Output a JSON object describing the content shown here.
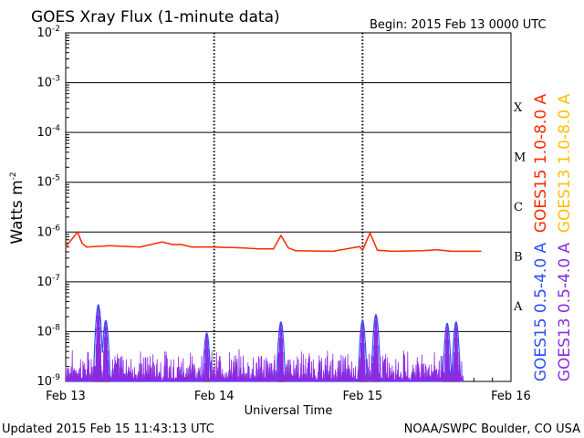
{
  "chart_data": {
    "type": "line",
    "title": "GOES Xray Flux (1-minute data)",
    "begin_label": "Begin:  2015 Feb 13 0000 UTC",
    "ylabel_main": "Watts m",
    "ylabel_exp": "-2",
    "xlabel": "Universal Time",
    "yscale": "log",
    "ylim": [
      1e-09,
      0.01
    ],
    "xlim_days": [
      0,
      3
    ],
    "x_ticks": [
      "Feb 13",
      "Feb 14",
      "Feb 15",
      "Feb 16"
    ],
    "y_ticks": [
      {
        "base": "10",
        "exp": "-2"
      },
      {
        "base": "10",
        "exp": "-3"
      },
      {
        "base": "10",
        "exp": "-4"
      },
      {
        "base": "10",
        "exp": "-5"
      },
      {
        "base": "10",
        "exp": "-6"
      },
      {
        "base": "10",
        "exp": "-7"
      },
      {
        "base": "10",
        "exp": "-8"
      },
      {
        "base": "10",
        "exp": "-9"
      }
    ],
    "flare_classes": [
      "X",
      "M",
      "C",
      "B",
      "A"
    ],
    "grid": true,
    "legend_placement": "right, vertical",
    "series": [
      {
        "name": "GOES15 1.0-8.0 A",
        "color": "#ff2a00",
        "band": "long"
      },
      {
        "name": "GOES13 1.0-8.0 A",
        "color": "#ffbf00",
        "band": "long"
      },
      {
        "name": "GOES15 0.5-4.0 A",
        "color": "#2b50ff",
        "band": "short"
      },
      {
        "name": "GOES13 0.5-4.0 A",
        "color": "#8a2be2",
        "band": "short"
      }
    ],
    "long_band_data": {
      "x_days": [
        0.0,
        0.08,
        0.11,
        0.14,
        0.3,
        0.5,
        0.65,
        0.72,
        0.78,
        0.85,
        1.0,
        1.2,
        1.3,
        1.4,
        1.45,
        1.5,
        1.55,
        1.8,
        1.98,
        2.0,
        2.05,
        2.1,
        2.2,
        2.4,
        2.5,
        2.6,
        2.7,
        2.8
      ],
      "y_flux": [
        5e-07,
        1e-06,
        6e-07,
        5e-07,
        5.3e-07,
        5e-07,
        6.3e-07,
        5.6e-07,
        5.6e-07,
        5e-07,
        5e-07,
        4.8e-07,
        4.6e-07,
        4.6e-07,
        8.5e-07,
        4.8e-07,
        4.2e-07,
        4.1e-07,
        5.1e-07,
        4.3e-07,
        9.6e-07,
        4.3e-07,
        4.1e-07,
        4.2e-07,
        4.4e-07,
        4.1e-07,
        4.1e-07,
        4.1e-07
      ]
    },
    "short_band_peaks": {
      "x_days": [
        0.22,
        0.27,
        0.95,
        1.45,
        2.0,
        2.09,
        2.57,
        2.63
      ],
      "y_flux": [
        3.3e-08,
        1.6e-08,
        9e-09,
        1.5e-08,
        1.6e-08,
        2.1e-08,
        1.4e-08,
        1.5e-08
      ]
    },
    "short_band_end_day": 2.68
  },
  "footer": {
    "updated": "Updated 2015 Feb 15 11:43:13 UTC",
    "source": "NOAA/SWPC Boulder, CO USA"
  }
}
